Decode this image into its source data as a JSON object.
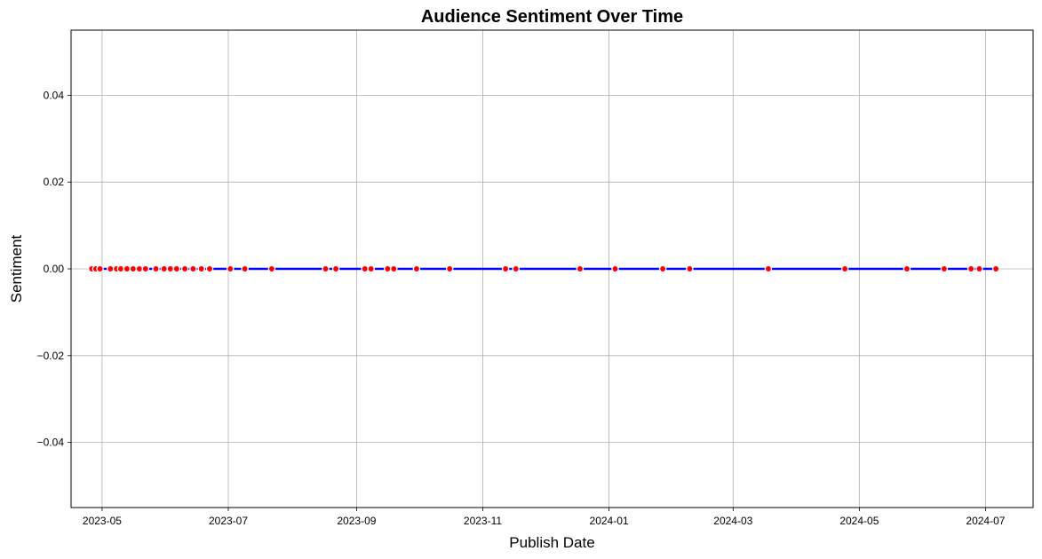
{
  "chart_data": {
    "type": "line",
    "title": "Audience Sentiment Over Time",
    "xlabel": "Publish Date",
    "ylabel": "Sentiment",
    "xlim": [
      "2023-04-16",
      "2024-07-24"
    ],
    "ylim": [
      -0.055,
      0.055
    ],
    "x_ticks": [
      "2023-05-01",
      "2023-07-01",
      "2023-09-01",
      "2023-11-01",
      "2024-01-01",
      "2024-03-01",
      "2024-05-01",
      "2024-07-01"
    ],
    "x_tick_labels": [
      "2023-05",
      "2023-07",
      "2023-09",
      "2023-11",
      "2024-01",
      "2024-03",
      "2024-05",
      "2024-07"
    ],
    "y_ticks": [
      -0.04,
      -0.02,
      0.0,
      0.02,
      0.04
    ],
    "y_tick_labels": [
      "−0.04",
      "−0.02",
      "0.00",
      "0.02",
      "0.04"
    ],
    "grid": true,
    "colors": {
      "line": "#0000ff",
      "marker": "#ff0000",
      "marker_edge": "#ffffff",
      "grid": "#b0b0b0"
    },
    "series": [
      {
        "x": [
          "2023-04-26",
          "2023-04-28",
          "2023-04-30",
          "2023-05-05",
          "2023-05-08",
          "2023-05-10",
          "2023-05-13",
          "2023-05-16",
          "2023-05-19",
          "2023-05-22",
          "2023-05-27",
          "2023-05-31",
          "2023-06-03",
          "2023-06-06",
          "2023-06-10",
          "2023-06-14",
          "2023-06-18",
          "2023-06-22",
          "2023-07-02",
          "2023-07-09",
          "2023-07-22",
          "2023-08-17",
          "2023-08-22",
          "2023-09-05",
          "2023-09-08",
          "2023-09-16",
          "2023-09-19",
          "2023-09-30",
          "2023-10-16",
          "2023-11-12",
          "2023-11-17",
          "2023-12-18",
          "2024-01-04",
          "2024-01-27",
          "2024-02-09",
          "2024-03-18",
          "2024-04-24",
          "2024-05-24",
          "2024-06-11",
          "2024-06-24",
          "2024-06-28",
          "2024-07-06"
        ],
        "y": [
          0,
          0,
          0,
          0,
          0,
          0,
          0,
          0,
          0,
          0,
          0,
          0,
          0,
          0,
          0,
          0,
          0,
          0,
          0,
          0,
          0,
          0,
          0,
          0,
          0,
          0,
          0,
          0,
          0,
          0,
          0,
          0,
          0,
          0,
          0,
          0,
          0,
          0,
          0,
          0,
          0,
          0
        ]
      }
    ]
  }
}
